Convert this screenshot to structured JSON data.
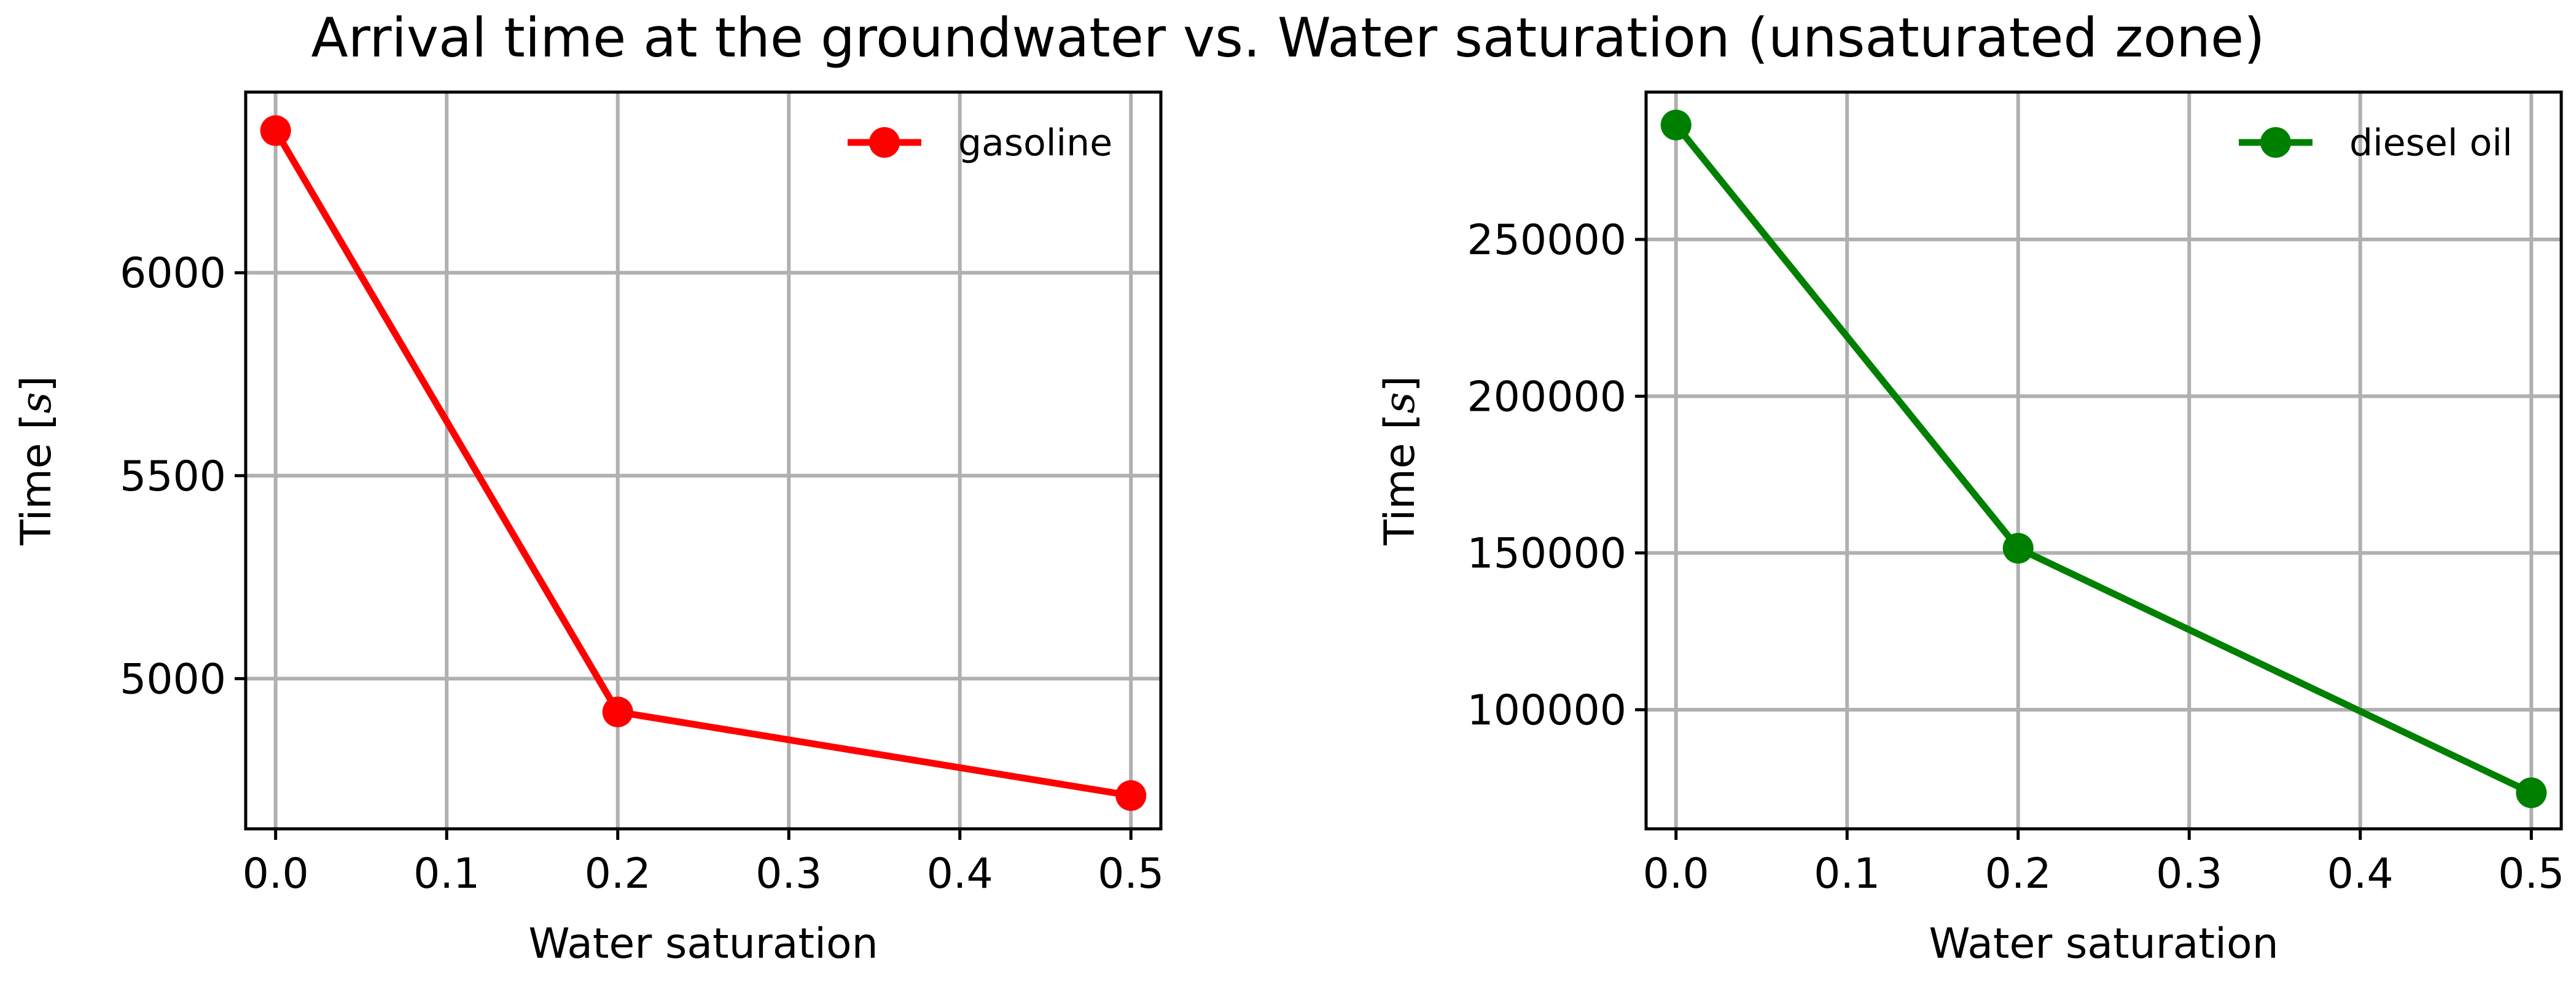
{
  "chart_data": {
    "title": "Arrival time at the groundwater vs. Water saturation (unsaturated zone)",
    "panels": [
      {
        "type": "line",
        "xlabel": "Water saturation",
        "ylabel": "Time [s]",
        "ylabel_text": "Time [",
        "ylabel_unit": "s",
        "ylabel_close": "]",
        "x": [
          0.0,
          0.2,
          0.5
        ],
        "series": [
          {
            "name": "gasoline",
            "values": [
              6350,
              4918,
              4712
            ],
            "color": "#ff0000"
          }
        ],
        "xlim": [
          -0.0175,
          0.5175
        ],
        "ylim": [
          4630,
          6445
        ],
        "xticks": [
          0.0,
          0.1,
          0.2,
          0.3,
          0.4,
          0.5
        ],
        "xtick_labels": [
          "0.0",
          "0.1",
          "0.2",
          "0.3",
          "0.4",
          "0.5"
        ],
        "yticks": [
          5000,
          5500,
          6000
        ],
        "ytick_labels": [
          "5000",
          "5500",
          "6000"
        ],
        "grid": true,
        "legend": "top-right"
      },
      {
        "type": "line",
        "xlabel": "Water saturation",
        "ylabel": "Time [s]",
        "ylabel_text": "Time [",
        "ylabel_unit": "s",
        "ylabel_close": "]",
        "x": [
          0.0,
          0.2,
          0.5
        ],
        "series": [
          {
            "name": "diesel oil",
            "values": [
              286500,
              151500,
              73500
            ],
            "color": "#008000"
          }
        ],
        "xlim": [
          -0.0175,
          0.5175
        ],
        "ylim": [
          62000,
          297000
        ],
        "xticks": [
          0.0,
          0.1,
          0.2,
          0.3,
          0.4,
          0.5
        ],
        "xtick_labels": [
          "0.0",
          "0.1",
          "0.2",
          "0.3",
          "0.4",
          "0.5"
        ],
        "yticks": [
          100000,
          150000,
          200000,
          250000
        ],
        "ytick_labels": [
          "100000",
          "150000",
          "200000",
          "250000"
        ],
        "grid": true,
        "legend": "top-right"
      }
    ]
  }
}
